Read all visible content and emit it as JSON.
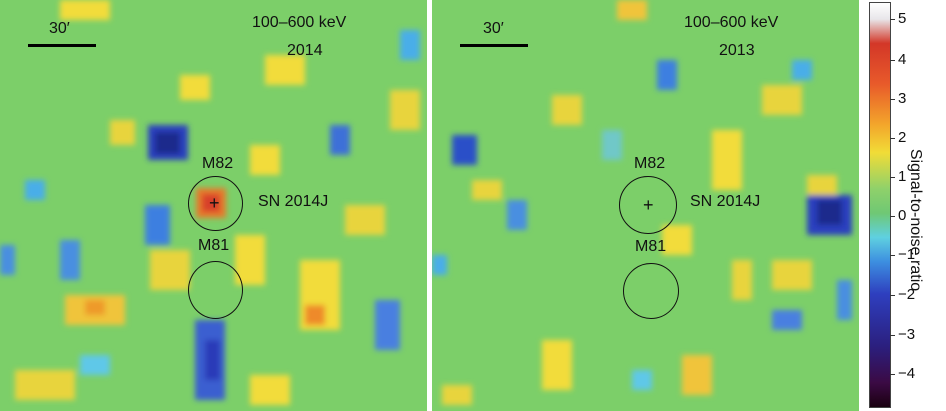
{
  "panels": [
    {
      "energy": "100–600 keV",
      "year": "2014",
      "scale": "30′",
      "sources": [
        "M82",
        "M81"
      ],
      "sn_label": "SN 2014J"
    },
    {
      "energy": "100–600 keV",
      "year": "2013",
      "scale": "30′",
      "sources": [
        "M82",
        "M81"
      ],
      "sn_label": "SN 2014J"
    }
  ],
  "colorbar": {
    "title": "Signal-to-noise ratio",
    "ticks": [
      "5",
      "4",
      "3",
      "2",
      "1",
      "0",
      "−1",
      "−2",
      "−3",
      "−4"
    ]
  }
}
